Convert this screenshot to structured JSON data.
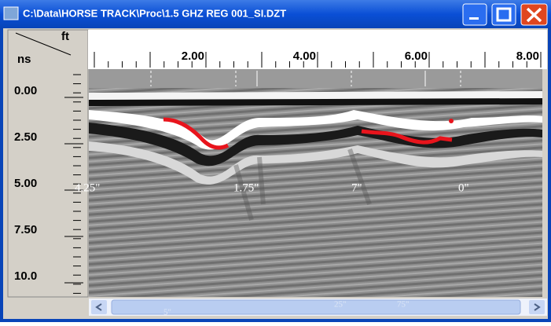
{
  "window": {
    "title": "C:\\Data\\HORSE TRACK\\Proc\\1.5 GHZ REG 001_SI.DZT"
  },
  "axes": {
    "x_unit": "ft",
    "y_unit": "ns",
    "x_labels": [
      "2.00",
      "4.00",
      "6.00",
      "8.00"
    ],
    "y_labels": [
      "0.00",
      "2.50",
      "5.00",
      "7.50",
      "10.0"
    ]
  },
  "annotations": [
    "4.25\"",
    "1.75\"",
    "7\"",
    "0\""
  ],
  "scrollbar_labels": [
    "5\"",
    "25\"",
    "75\""
  ]
}
